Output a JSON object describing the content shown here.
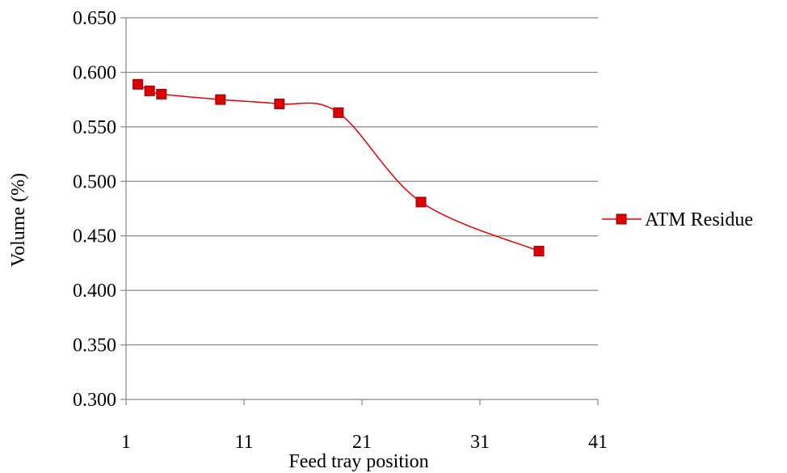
{
  "chart_data": {
    "type": "line",
    "title": "",
    "xlabel": "Feed tray position",
    "ylabel": "Volume (%)",
    "xlim": [
      1,
      41
    ],
    "ylim": [
      0.3,
      0.65
    ],
    "x_ticks": [
      "1",
      "11",
      "21",
      "31",
      "41"
    ],
    "y_ticks": [
      "0.300",
      "0.350",
      "0.400",
      "0.450",
      "0.500",
      "0.550",
      "0.600",
      "0.650"
    ],
    "grid": "horizontal",
    "smooth": true,
    "legend_position": "right",
    "series": [
      {
        "name": "ATM Residue",
        "color": "#e00000",
        "marker": "square",
        "x": [
          2,
          3,
          4,
          9,
          14,
          19,
          26,
          36
        ],
        "y": [
          0.589,
          0.583,
          0.58,
          0.575,
          0.571,
          0.563,
          0.481,
          0.436
        ]
      }
    ]
  }
}
